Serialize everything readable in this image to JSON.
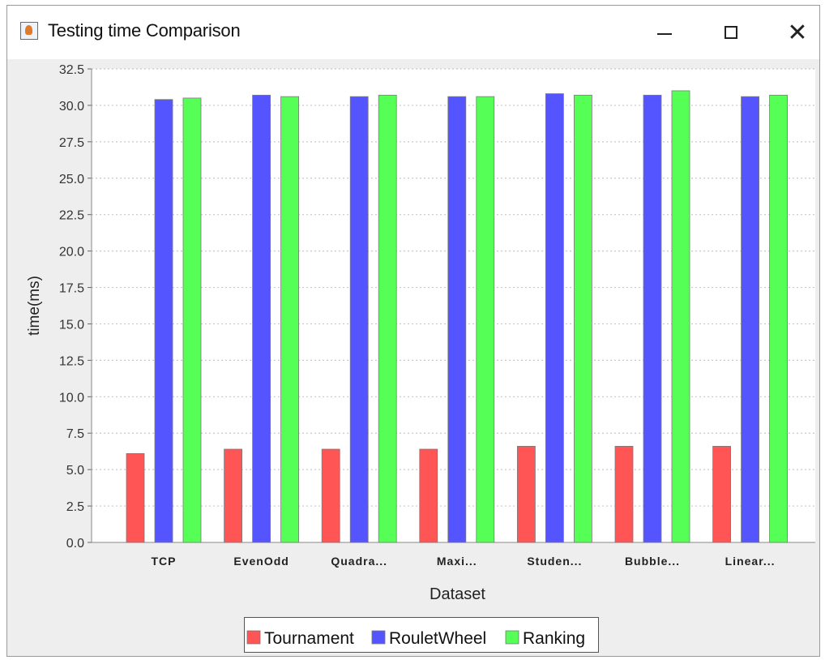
{
  "window": {
    "title": "Testing time Comparison",
    "minimize_label": "—",
    "maximize_label": "☐",
    "close_label": "✕"
  },
  "colors": {
    "tournament": "#ff5555",
    "roulette": "#5555ff",
    "ranking": "#55ff55",
    "grid": "#c8c8c8",
    "plot_bg": "#ffffff"
  },
  "chart_data": {
    "type": "bar",
    "xlabel": "Dataset",
    "ylabel": "time(ms)",
    "ylim": [
      0,
      32.5
    ],
    "yticks": [
      "0.0",
      "2.5",
      "5.0",
      "7.5",
      "10.0",
      "12.5",
      "15.0",
      "17.5",
      "20.0",
      "22.5",
      "25.0",
      "27.5",
      "30.0",
      "32.5"
    ],
    "categories": [
      "TCP",
      "EvenOdd",
      "Quadra...",
      "Maxi...",
      "Studen...",
      "Bubble...",
      "Linear..."
    ],
    "series": [
      {
        "name": "Tournament",
        "values": [
          6.1,
          6.4,
          6.4,
          6.4,
          6.6,
          6.6,
          6.6
        ]
      },
      {
        "name": "RouletWheel",
        "values": [
          30.4,
          30.7,
          30.6,
          30.6,
          30.8,
          30.7,
          30.6
        ]
      },
      {
        "name": "Ranking",
        "values": [
          30.5,
          30.6,
          30.7,
          30.6,
          30.7,
          31.0,
          30.7
        ]
      }
    ],
    "legend_position": "bottom",
    "grid": true
  }
}
